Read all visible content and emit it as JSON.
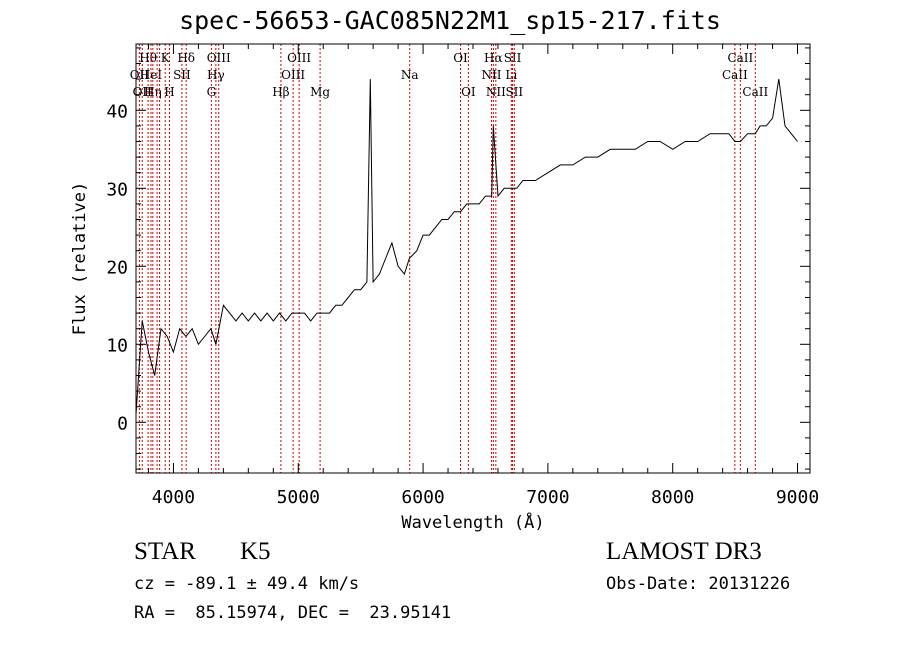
{
  "chart_data": {
    "type": "line",
    "title": "spec-56653-GAC085N22M1_sp15-217.fits",
    "xlabel": "Wavelength (Å)",
    "ylabel": "Flux (relative)",
    "xlim": [
      3700,
      9100
    ],
    "ylim": [
      -6.5,
      48.5
    ],
    "xticks": [
      4000,
      5000,
      6000,
      7000,
      8000,
      9000
    ],
    "xtick_labels": [
      "4000",
      "5000",
      "6000",
      "7000",
      "8000",
      "9000"
    ],
    "yticks": [
      0,
      10,
      20,
      30,
      40
    ],
    "ytick_labels": [
      "0",
      "10",
      "20",
      "30",
      "40"
    ],
    "line_color": "#000000",
    "marker_color": "#cc0000",
    "series": [
      {
        "name": "spectrum",
        "x": [
          3700,
          3750,
          3800,
          3850,
          3900,
          3950,
          4000,
          4050,
          4100,
          4150,
          4200,
          4250,
          4300,
          4340,
          4400,
          4450,
          4500,
          4550,
          4600,
          4650,
          4700,
          4750,
          4800,
          4850,
          4900,
          4950,
          5000,
          5050,
          5100,
          5150,
          5200,
          5250,
          5300,
          5350,
          5400,
          5450,
          5500,
          5550,
          5577,
          5600,
          5650,
          5700,
          5750,
          5800,
          5850,
          5890,
          5950,
          6000,
          6050,
          6100,
          6150,
          6200,
          6250,
          6300,
          6350,
          6400,
          6450,
          6500,
          6550,
          6563,
          6600,
          6650,
          6700,
          6750,
          6800,
          6900,
          7000,
          7100,
          7200,
          7300,
          7400,
          7500,
          7600,
          7700,
          7800,
          7900,
          8000,
          8100,
          8200,
          8300,
          8400,
          8450,
          8498,
          8542,
          8600,
          8662,
          8700,
          8750,
          8800,
          8850,
          8900,
          8950,
          9000
        ],
        "y": [
          1,
          13,
          9,
          6,
          12,
          11,
          9,
          12,
          11,
          12,
          10,
          11,
          12,
          10,
          15,
          14,
          13,
          14,
          13,
          14,
          13,
          14,
          13,
          14,
          13,
          14,
          14,
          14,
          13,
          14,
          14,
          14,
          15,
          15,
          16,
          17,
          17,
          18,
          44,
          18,
          19,
          21,
          23,
          20,
          19,
          21,
          22,
          24,
          24,
          25,
          26,
          26,
          27,
          27,
          28,
          28,
          28,
          29,
          29,
          38,
          29,
          30,
          30,
          30,
          31,
          31,
          32,
          33,
          33,
          34,
          34,
          35,
          35,
          35,
          36,
          36,
          35,
          36,
          36,
          37,
          37,
          37,
          36,
          36,
          37,
          37,
          38,
          38,
          39,
          44,
          38,
          37,
          36
        ]
      }
    ],
    "line_markers": [
      {
        "wavelength": 3727,
        "label": "OII",
        "row": 2
      },
      {
        "wavelength": 3750,
        "label": "OII",
        "row": 3
      },
      {
        "wavelength": 3797,
        "label": "Hθ",
        "row": 1
      },
      {
        "wavelength": 3820,
        "label": "HeI",
        "row": 2
      },
      {
        "wavelength": 3835,
        "label": "Hη",
        "row": 3
      },
      {
        "wavelength": 3869,
        "label": "",
        "row": 0
      },
      {
        "wavelength": 3889,
        "label": "",
        "row": 0
      },
      {
        "wavelength": 3934,
        "label": "K",
        "row": 1
      },
      {
        "wavelength": 3968,
        "label": "H",
        "row": 3
      },
      {
        "wavelength": 4068,
        "label": "SII",
        "row": 2
      },
      {
        "wavelength": 4102,
        "label": "Hδ",
        "row": 1
      },
      {
        "wavelength": 4304,
        "label": "G",
        "row": 3
      },
      {
        "wavelength": 4340,
        "label": "Hγ",
        "row": 2
      },
      {
        "wavelength": 4363,
        "label": "OIII",
        "row": 1
      },
      {
        "wavelength": 4861,
        "label": "Hβ",
        "row": 3
      },
      {
        "wavelength": 4959,
        "label": "OIII",
        "row": 2
      },
      {
        "wavelength": 5007,
        "label": "OIII",
        "row": 1
      },
      {
        "wavelength": 5175,
        "label": "Mg",
        "row": 3
      },
      {
        "wavelength": 5893,
        "label": "Na",
        "row": 2
      },
      {
        "wavelength": 6300,
        "label": "OI",
        "row": 1
      },
      {
        "wavelength": 6363,
        "label": "OI",
        "row": 3
      },
      {
        "wavelength": 6548,
        "label": "NII",
        "row": 2
      },
      {
        "wavelength": 6563,
        "label": "Hα",
        "row": 1
      },
      {
        "wavelength": 6583,
        "label": "NII",
        "row": 3
      },
      {
        "wavelength": 6707,
        "label": "Li",
        "row": 2
      },
      {
        "wavelength": 6717,
        "label": "SII",
        "row": 1
      },
      {
        "wavelength": 6731,
        "label": "SII",
        "row": 3
      },
      {
        "wavelength": 8498,
        "label": "CaII",
        "row": 2
      },
      {
        "wavelength": 8542,
        "label": "CaII",
        "row": 1
      },
      {
        "wavelength": 8662,
        "label": "CaII",
        "row": 3
      }
    ]
  },
  "info": {
    "class_label": "STAR",
    "subclass": "K5",
    "survey": "LAMOST DR3",
    "cz": "cz = -89.1 ± 49.4 km/s",
    "obs_date": "Obs-Date: 20131226",
    "coords": "RA =  85.15974, DEC =  23.95141"
  }
}
